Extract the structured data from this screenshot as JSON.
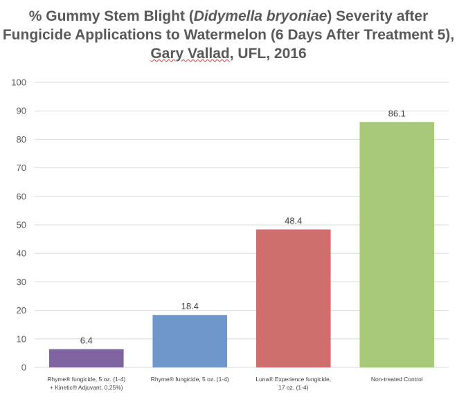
{
  "chart_data": {
    "type": "bar",
    "title": {
      "line1_pre": "% Gummy Stem Blight (",
      "line1_italic": "Didymella bryoniae",
      "line1_post": ") Severity after",
      "line2": "Fungicide Applications to Watermelon (6 Days After Treatment 5),",
      "line3_name": "Gary Vallad",
      "line3_rest": ", UFL, 2016"
    },
    "categories": [
      [
        "Rhyme® fungicide, 5 oz. (1-4)",
        "+ Kinetic® Adjuvant, 0.25%)"
      ],
      [
        "Rhyme® fungicide, 5 oz. (1-4)"
      ],
      [
        "Luna® Experience fungicide,",
        "17 oz. (1-4)"
      ],
      [
        "Non-treated Control"
      ]
    ],
    "values": [
      6.4,
      18.4,
      48.4,
      86.1
    ],
    "value_labels": [
      "6.4",
      "18.4",
      "48.4",
      "86.1"
    ],
    "colors": [
      "#8064a2",
      "#6f97cb",
      "#cd6f6d",
      "#a9c97a"
    ],
    "ylim": [
      0,
      100
    ],
    "yticks": [
      0,
      10,
      20,
      30,
      40,
      50,
      60,
      70,
      80,
      90,
      100
    ],
    "grid": true,
    "grid_color": "#d9d9d9"
  }
}
